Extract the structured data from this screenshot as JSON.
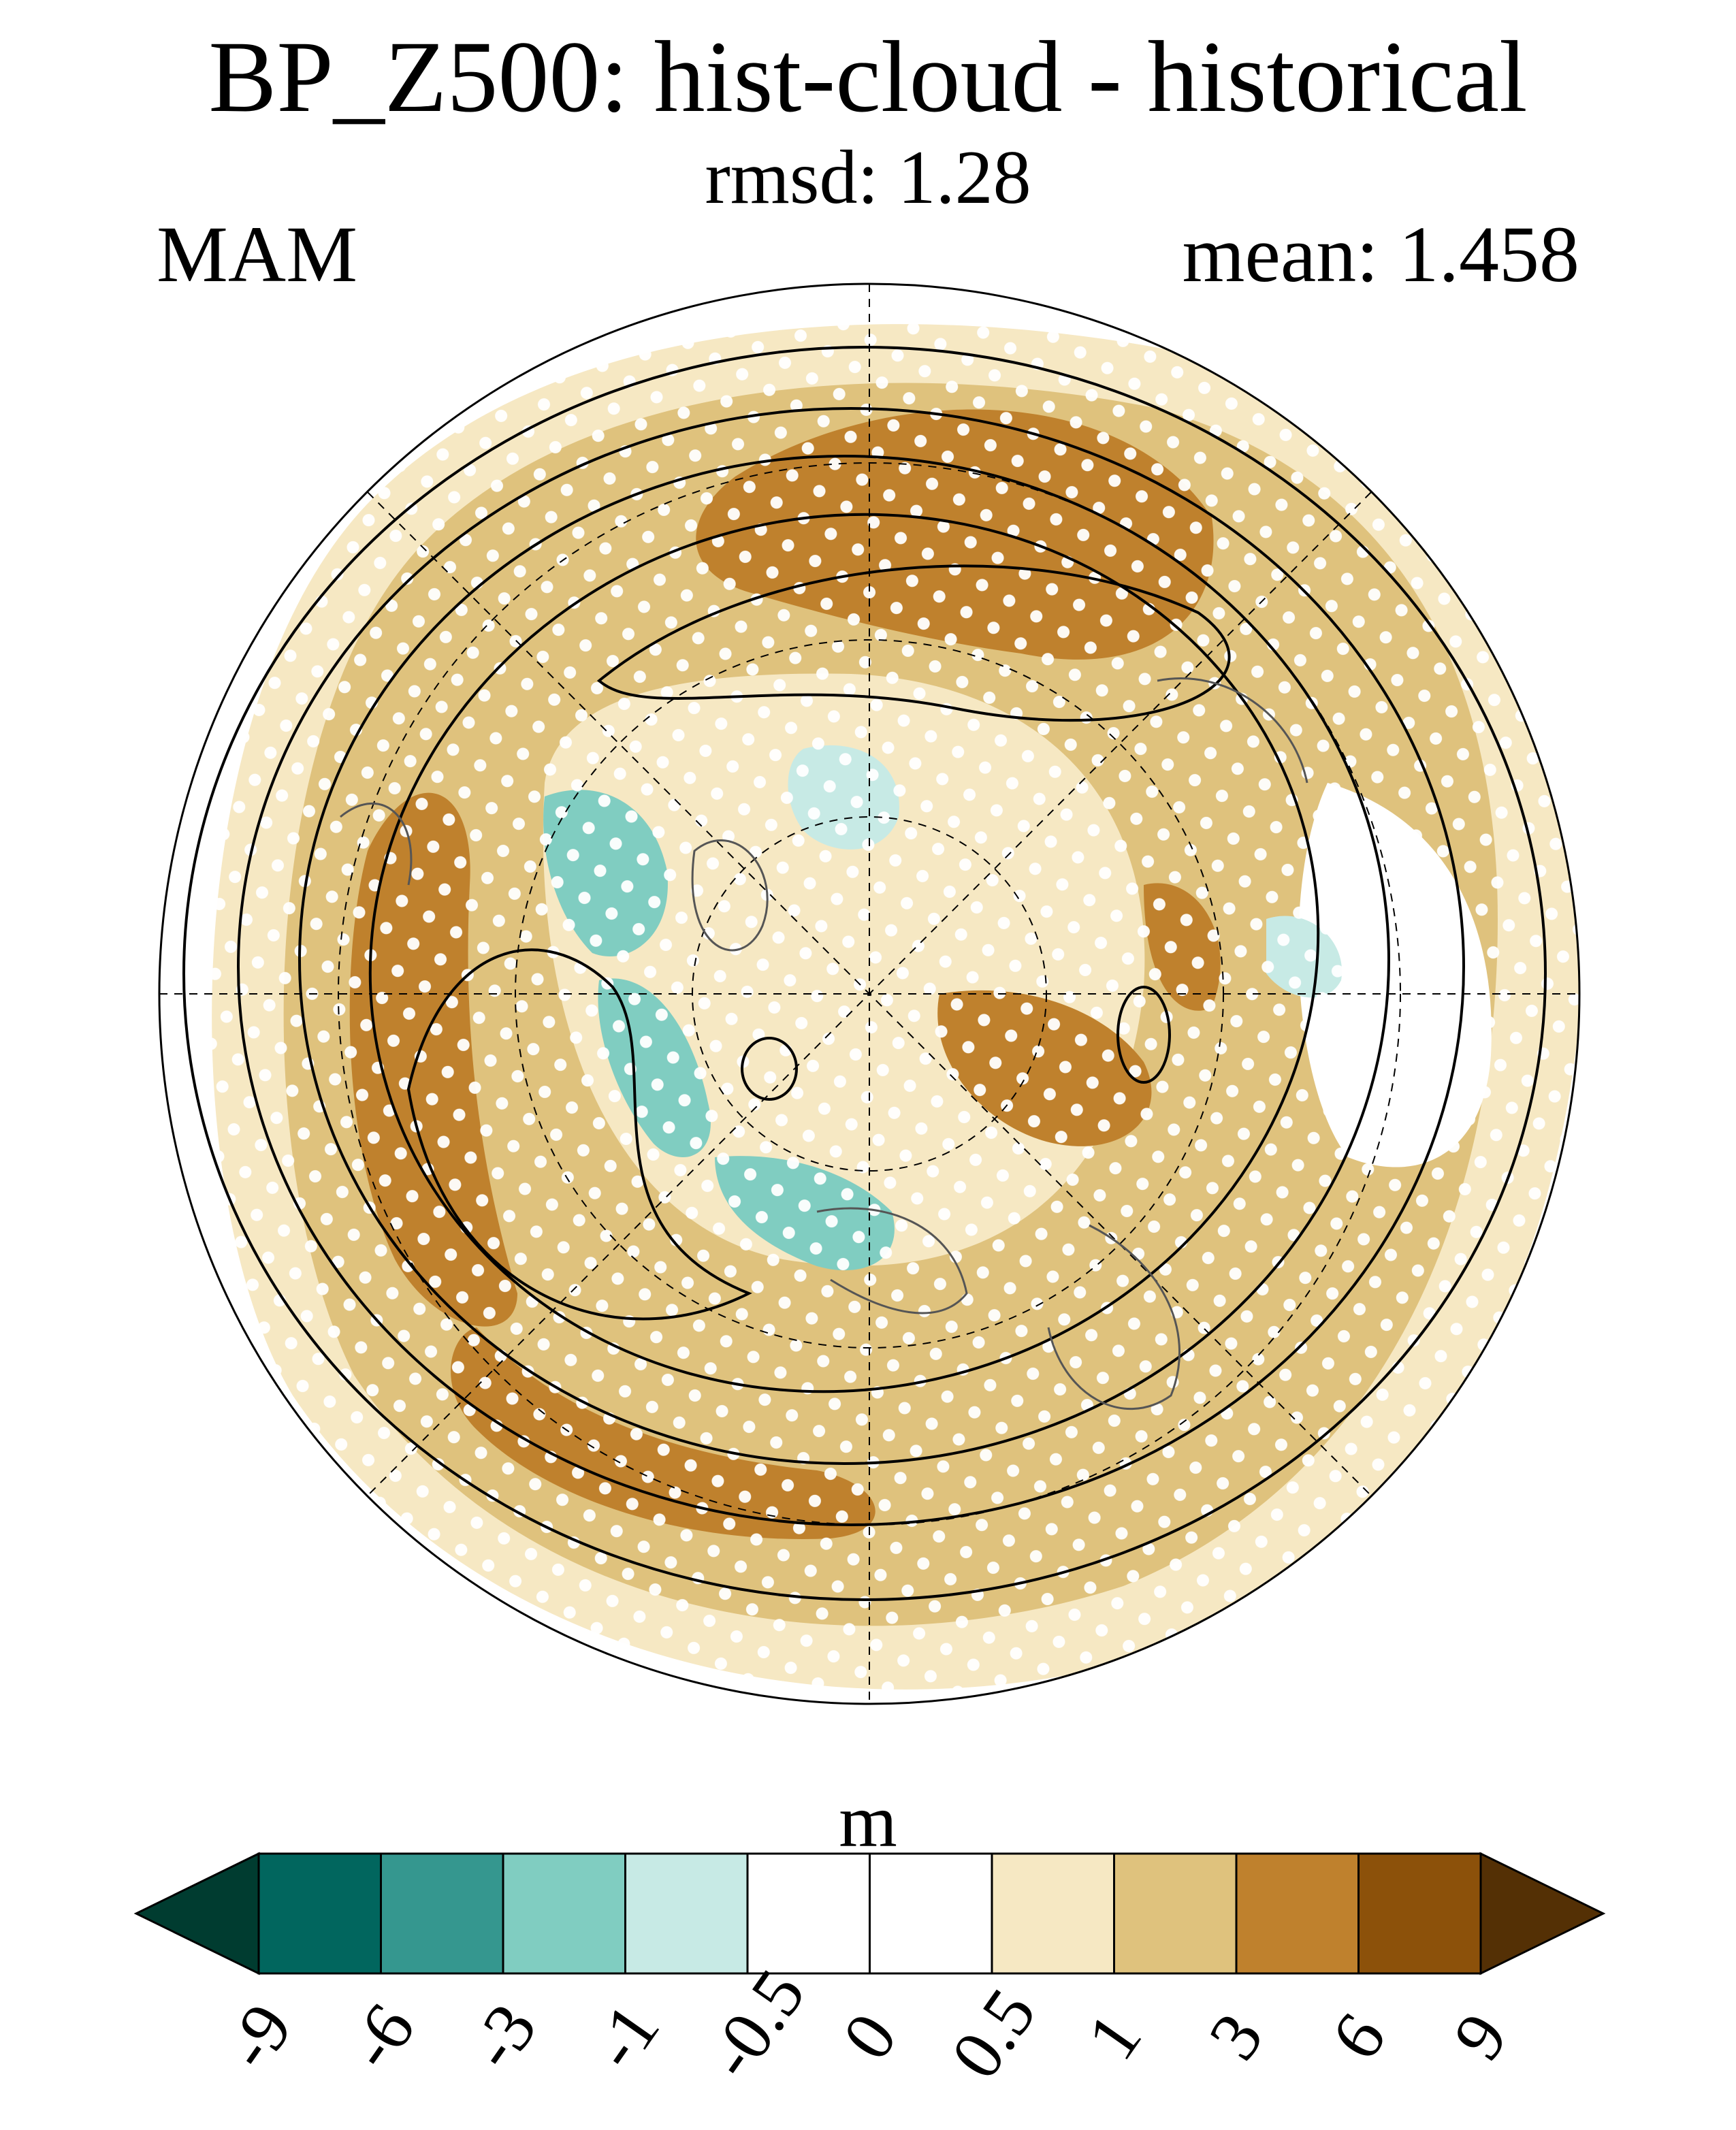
{
  "chart_data": {
    "type": "heatmap",
    "projection": "north-polar-stereographic",
    "title": "BP_Z500: hist-cloud - historical",
    "subtitle_label": "rmsd:",
    "rmsd": "1.28",
    "season": "MAM",
    "mean_label": "mean:",
    "mean": "1.458",
    "units": "m",
    "colorbar": {
      "levels": [
        "-9",
        "-6",
        "-3",
        "-1",
        "-0.5",
        "0",
        "0.5",
        "1",
        "3",
        "6",
        "9"
      ],
      "colors": [
        "#003c30",
        "#01665e",
        "#35978f",
        "#80cdc1",
        "#c7eae5",
        "#ffffff",
        "#ffffff",
        "#f6e8c3",
        "#dfc27d",
        "#bf812d",
        "#8c510a",
        "#543005"
      ],
      "extend": "both"
    },
    "overlays": [
      "stippling: significance dots",
      "black contours: climatology",
      "coastlines",
      "lat/lon dashed grid"
    ]
  }
}
